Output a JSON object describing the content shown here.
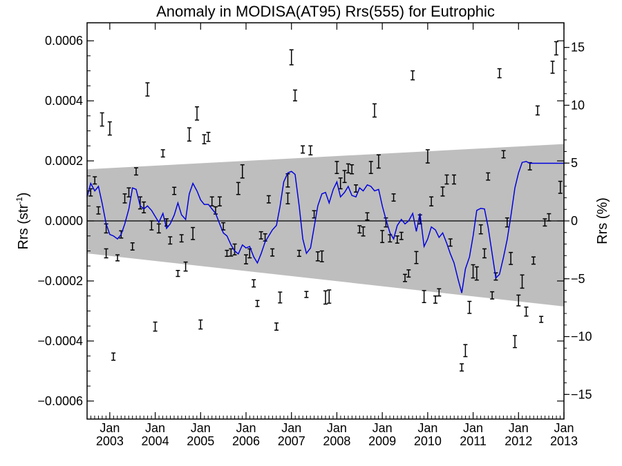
{
  "chart_data": {
    "type": "scatter",
    "title": "Anomaly in MODISA(AT95) Rrs(555) for Eutrophic",
    "ylabel_left": {
      "base": "Rrs (str",
      "sup": "-1",
      "close": ")"
    },
    "ylabel_right": "Rrs (%)",
    "xlim": [
      2002.5,
      2013.0
    ],
    "ylim": [
      -0.00066,
      0.00066
    ],
    "ylim_right_percent": [
      -17.13,
      17.13
    ],
    "left_ticks": [
      {
        "value": 0.0006,
        "label": "0.0006"
      },
      {
        "value": 0.0004,
        "label": "0.0004"
      },
      {
        "value": 0.0002,
        "label": "0.0002"
      },
      {
        "value": 0.0,
        "label": "0.0000"
      },
      {
        "value": -0.0002,
        "label": "−0.0002"
      },
      {
        "value": -0.0004,
        "label": "−0.0004"
      },
      {
        "value": -0.0006,
        "label": "−0.0006"
      }
    ],
    "right_ticks": [
      {
        "value": 15,
        "label": "15"
      },
      {
        "value": 10,
        "label": "10"
      },
      {
        "value": 5,
        "label": "5"
      },
      {
        "value": 0,
        "label": "0"
      },
      {
        "value": -5,
        "label": "−5"
      },
      {
        "value": -10,
        "label": "−10"
      },
      {
        "value": -15,
        "label": "−15"
      }
    ],
    "x_ticks": [
      {
        "value": 2003.0,
        "month": "Jan",
        "year": "2003"
      },
      {
        "value": 2004.0,
        "month": "Jan",
        "year": "2004"
      },
      {
        "value": 2005.0,
        "month": "Jan",
        "year": "2005"
      },
      {
        "value": 2006.0,
        "month": "Jan",
        "year": "2006"
      },
      {
        "value": 2007.0,
        "month": "Jan",
        "year": "2007"
      },
      {
        "value": 2008.0,
        "month": "Jan",
        "year": "2008"
      },
      {
        "value": 2009.0,
        "month": "Jan",
        "year": "2009"
      },
      {
        "value": 2010.0,
        "month": "Jan",
        "year": "2010"
      },
      {
        "value": 2011.0,
        "month": "Jan",
        "year": "2011"
      },
      {
        "value": 2012.0,
        "month": "Jan",
        "year": "2012"
      },
      {
        "value": 2013.0,
        "month": "Jan",
        "year": "2013"
      }
    ],
    "confidence_band": {
      "x": [
        2002.5,
        2013.0
      ],
      "upper": [
        0.000172,
        0.000256
      ],
      "lower": [
        -0.000108,
        -0.000285
      ],
      "color": "#bebebe"
    },
    "zero_line": 0.0,
    "error_bar_color": "#000000",
    "points": [
      {
        "x": 2002.58,
        "y": 9.5e-05,
        "e": 1.2e-05
      },
      {
        "x": 2002.67,
        "y": 0.000135,
        "e": 1.2e-05
      },
      {
        "x": 2002.75,
        "y": 3.5e-05,
        "e": 1.2e-05
      },
      {
        "x": 2002.83,
        "y": 0.000338,
        "e": 2.2e-05
      },
      {
        "x": 2002.92,
        "y": -0.000108,
        "e": 1.5e-05
      },
      {
        "x": 2002.92,
        "y": -2.5e-05,
        "e": 1.5e-05
      },
      {
        "x": 2003.0,
        "y": 0.000308,
        "e": 2.2e-05
      },
      {
        "x": 2003.08,
        "y": -0.000452,
        "e": 1.2e-05
      },
      {
        "x": 2003.17,
        "y": -0.000123,
        "e": 1e-05
      },
      {
        "x": 2003.25,
        "y": -4.5e-05,
        "e": 1.2e-05
      },
      {
        "x": 2003.33,
        "y": 7.5e-05,
        "e": 1.5e-05
      },
      {
        "x": 2003.42,
        "y": 9.5e-05,
        "e": 1.5e-05
      },
      {
        "x": 2003.5,
        "y": -8.5e-05,
        "e": 1.2e-05
      },
      {
        "x": 2003.58,
        "y": 0.000165,
        "e": 1.2e-05
      },
      {
        "x": 2003.67,
        "y": 6e-05,
        "e": 2e-05
      },
      {
        "x": 2003.75,
        "y": 4.5e-05,
        "e": 1.8e-05
      },
      {
        "x": 2003.83,
        "y": 0.000438,
        "e": 2.2e-05
      },
      {
        "x": 2003.92,
        "y": -1.5e-05,
        "e": 1.5e-05
      },
      {
        "x": 2004.0,
        "y": -0.000352,
        "e": 1.5e-05
      },
      {
        "x": 2004.08,
        "y": -2.5e-05,
        "e": 1.5e-05
      },
      {
        "x": 2004.17,
        "y": 0.000225,
        "e": 1.2e-05
      },
      {
        "x": 2004.25,
        "y": -5e-06,
        "e": 1.2e-05
      },
      {
        "x": 2004.33,
        "y": -6.5e-05,
        "e": 1.2e-05
      },
      {
        "x": 2004.42,
        "y": 0.0001,
        "e": 1.2e-05
      },
      {
        "x": 2004.5,
        "y": -0.000175,
        "e": 1e-05
      },
      {
        "x": 2004.58,
        "y": -5.8e-05,
        "e": 1.2e-05
      },
      {
        "x": 2004.67,
        "y": -0.000152,
        "e": 1.5e-05
      },
      {
        "x": 2004.75,
        "y": 0.000288,
        "e": 2.2e-05
      },
      {
        "x": 2004.83,
        "y": -4.2e-05,
        "e": 2e-05
      },
      {
        "x": 2004.92,
        "y": 0.000358,
        "e": 2.2e-05
      },
      {
        "x": 2005.0,
        "y": -0.000345,
        "e": 1.5e-05
      },
      {
        "x": 2005.08,
        "y": 0.000272,
        "e": 1.5e-05
      },
      {
        "x": 2005.17,
        "y": 0.00028,
        "e": 1.5e-05
      },
      {
        "x": 2005.25,
        "y": 6.5e-05,
        "e": 1.5e-05
      },
      {
        "x": 2005.33,
        "y": 3.5e-05,
        "e": 1.2e-05
      },
      {
        "x": 2005.42,
        "y": 6.5e-05,
        "e": 1.5e-05
      },
      {
        "x": 2005.5,
        "y": -1.8e-05,
        "e": 1.2e-05
      },
      {
        "x": 2005.58,
        "y": -0.000108,
        "e": 1e-05
      },
      {
        "x": 2005.67,
        "y": -0.000105,
        "e": 1.2e-05
      },
      {
        "x": 2005.75,
        "y": -9.5e-05,
        "e": 1.8e-05
      },
      {
        "x": 2005.83,
        "y": 0.000108,
        "e": 2e-05
      },
      {
        "x": 2005.92,
        "y": 0.000165,
        "e": 2.2e-05
      },
      {
        "x": 2006.0,
        "y": -0.000128,
        "e": 1.5e-05
      },
      {
        "x": 2006.08,
        "y": -0.000108,
        "e": 1.5e-05
      },
      {
        "x": 2006.17,
        "y": -0.000208,
        "e": 1.2e-05
      },
      {
        "x": 2006.25,
        "y": -0.000275,
        "e": 1e-05
      },
      {
        "x": 2006.33,
        "y": -4.8e-05,
        "e": 1.2e-05
      },
      {
        "x": 2006.42,
        "y": -5.5e-05,
        "e": 1.2e-05
      },
      {
        "x": 2006.5,
        "y": 7.2e-05,
        "e": 1.2e-05
      },
      {
        "x": 2006.58,
        "y": -0.000105,
        "e": 1.2e-05
      },
      {
        "x": 2006.67,
        "y": -0.000352,
        "e": 1.2e-05
      },
      {
        "x": 2006.75,
        "y": -0.000255,
        "e": 1.8e-05
      },
      {
        "x": 2006.92,
        "y": 0.000135,
        "e": 2.2e-05
      },
      {
        "x": 2006.92,
        "y": 7.5e-05,
        "e": 1.8e-05
      },
      {
        "x": 2007.0,
        "y": 0.000545,
        "e": 2.5e-05
      },
      {
        "x": 2007.08,
        "y": 0.000418,
        "e": 1.8e-05
      },
      {
        "x": 2007.17,
        "y": -0.000108,
        "e": 1e-05
      },
      {
        "x": 2007.25,
        "y": 0.000238,
        "e": 1.2e-05
      },
      {
        "x": 2007.33,
        "y": -0.000245,
        "e": 1e-05
      },
      {
        "x": 2007.42,
        "y": 0.000235,
        "e": 1.5e-05
      },
      {
        "x": 2007.5,
        "y": 2.2e-05,
        "e": 1.2e-05
      },
      {
        "x": 2007.58,
        "y": -0.000118,
        "e": 1.5e-05
      },
      {
        "x": 2007.67,
        "y": -0.000118,
        "e": 1.8e-05
      },
      {
        "x": 2007.75,
        "y": -0.000255,
        "e": 2.2e-05
      },
      {
        "x": 2007.83,
        "y": -0.000252,
        "e": 2.2e-05
      },
      {
        "x": 2008.0,
        "y": 0.000178,
        "e": 2e-05
      },
      {
        "x": 2008.08,
        "y": 0.000125,
        "e": 1.8e-05
      },
      {
        "x": 2008.17,
        "y": 0.000148,
        "e": 2e-05
      },
      {
        "x": 2008.25,
        "y": 0.000175,
        "e": 1.5e-05
      },
      {
        "x": 2008.33,
        "y": 0.000172,
        "e": 1.5e-05
      },
      {
        "x": 2008.42,
        "y": 0.000108,
        "e": 1.2e-05
      },
      {
        "x": 2008.5,
        "y": -2.8e-05,
        "e": 1.2e-05
      },
      {
        "x": 2008.58,
        "y": -3.5e-05,
        "e": 1.5e-05
      },
      {
        "x": 2008.67,
        "y": 1.5e-05,
        "e": 1.2e-05
      },
      {
        "x": 2008.75,
        "y": 0.000178,
        "e": 2e-05
      },
      {
        "x": 2008.83,
        "y": 0.000368,
        "e": 2.2e-05
      },
      {
        "x": 2008.92,
        "y": 0.000198,
        "e": 2.2e-05
      },
      {
        "x": 2009.0,
        "y": -5.2e-05,
        "e": 2e-05
      },
      {
        "x": 2009.08,
        "y": -5e-06,
        "e": 1.5e-05
      },
      {
        "x": 2009.17,
        "y": -5.8e-05,
        "e": 1.2e-05
      },
      {
        "x": 2009.25,
        "y": 7.8e-05,
        "e": 1.2e-05
      },
      {
        "x": 2009.33,
        "y": -6.2e-05,
        "e": 1.2e-05
      },
      {
        "x": 2009.42,
        "y": -5e-05,
        "e": 1.2e-05
      },
      {
        "x": 2009.5,
        "y": -0.00019,
        "e": 1.2e-05
      },
      {
        "x": 2009.58,
        "y": -0.000175,
        "e": 1.2e-05
      },
      {
        "x": 2009.67,
        "y": 0.000485,
        "e": 1.5e-05
      },
      {
        "x": 2009.75,
        "y": -0.000122,
        "e": 2e-05
      },
      {
        "x": 2009.83,
        "y": 5e-06,
        "e": 1.5e-05
      },
      {
        "x": 2009.92,
        "y": -0.000252,
        "e": 2e-05
      },
      {
        "x": 2010.0,
        "y": 0.000215,
        "e": 2.2e-05
      },
      {
        "x": 2010.08,
        "y": 6.5e-05,
        "e": 1.5e-05
      },
      {
        "x": 2010.17,
        "y": -0.000262,
        "e": 1.2e-05
      },
      {
        "x": 2010.25,
        "y": -0.000238,
        "e": 1.2e-05
      },
      {
        "x": 2010.33,
        "y": 9.8e-05,
        "e": 1.5e-05
      },
      {
        "x": 2010.42,
        "y": 0.000138,
        "e": 1.5e-05
      },
      {
        "x": 2010.5,
        "y": -7.2e-05,
        "e": 1.2e-05
      },
      {
        "x": 2010.58,
        "y": 0.000138,
        "e": 1.5e-05
      },
      {
        "x": 2010.75,
        "y": -0.000488,
        "e": 1.2e-05
      },
      {
        "x": 2010.83,
        "y": -0.000432,
        "e": 2e-05
      },
      {
        "x": 2010.92,
        "y": -0.000288,
        "e": 2e-05
      },
      {
        "x": 2011.0,
        "y": -0.000168,
        "e": 2.2e-05
      },
      {
        "x": 2011.08,
        "y": -0.000175,
        "e": 2.2e-05
      },
      {
        "x": 2011.17,
        "y": -2.8e-05,
        "e": 1.5e-05
      },
      {
        "x": 2011.25,
        "y": -0.000108,
        "e": 1.5e-05
      },
      {
        "x": 2011.33,
        "y": 0.000148,
        "e": 1.2e-05
      },
      {
        "x": 2011.42,
        "y": -0.000248,
        "e": 1.2e-05
      },
      {
        "x": 2011.5,
        "y": -0.000185,
        "e": 1.2e-05
      },
      {
        "x": 2011.58,
        "y": 0.000492,
        "e": 1.5e-05
      },
      {
        "x": 2011.67,
        "y": 0.000222,
        "e": 1.2e-05
      },
      {
        "x": 2011.75,
        "y": -5e-06,
        "e": 1.5e-05
      },
      {
        "x": 2011.83,
        "y": -0.000125,
        "e": 2e-05
      },
      {
        "x": 2011.92,
        "y": -0.000402,
        "e": 2e-05
      },
      {
        "x": 2012.0,
        "y": -0.000265,
        "e": 1.8e-05
      },
      {
        "x": 2012.08,
        "y": -0.000202,
        "e": 2.2e-05
      },
      {
        "x": 2012.17,
        "y": -0.000302,
        "e": 1.5e-05
      },
      {
        "x": 2012.25,
        "y": 0.000182,
        "e": 1.2e-05
      },
      {
        "x": 2012.33,
        "y": -0.000132,
        "e": 1.2e-05
      },
      {
        "x": 2012.42,
        "y": 0.000368,
        "e": 1.5e-05
      },
      {
        "x": 2012.5,
        "y": -0.000328,
        "e": 1e-05
      },
      {
        "x": 2012.58,
        "y": -5e-06,
        "e": 1.2e-05
      },
      {
        "x": 2012.67,
        "y": 1.2e-05,
        "e": 1.2e-05
      },
      {
        "x": 2012.75,
        "y": 0.000512,
        "e": 2e-05
      },
      {
        "x": 2012.83,
        "y": 0.000575,
        "e": 2.2e-05
      },
      {
        "x": 2012.92,
        "y": 0.000112,
        "e": 2e-05
      }
    ],
    "smoothed_line": {
      "color": "#0000dd",
      "x": [
        2002.5,
        2002.58,
        2002.67,
        2002.75,
        2002.83,
        2002.92,
        2003.0,
        2003.08,
        2003.17,
        2003.25,
        2003.33,
        2003.42,
        2003.5,
        2003.58,
        2003.67,
        2003.75,
        2003.83,
        2003.92,
        2004.0,
        2004.08,
        2004.17,
        2004.25,
        2004.33,
        2004.42,
        2004.5,
        2004.58,
        2004.67,
        2004.75,
        2004.83,
        2004.92,
        2005.0,
        2005.08,
        2005.17,
        2005.25,
        2005.33,
        2005.42,
        2005.5,
        2005.58,
        2005.67,
        2005.75,
        2005.83,
        2005.92,
        2006.0,
        2006.08,
        2006.17,
        2006.25,
        2006.33,
        2006.42,
        2006.5,
        2006.58,
        2006.67,
        2006.75,
        2006.83,
        2006.92,
        2007.0,
        2007.08,
        2007.17,
        2007.25,
        2007.33,
        2007.42,
        2007.5,
        2007.58,
        2007.67,
        2007.75,
        2007.83,
        2007.92,
        2008.0,
        2008.08,
        2008.17,
        2008.25,
        2008.33,
        2008.42,
        2008.5,
        2008.58,
        2008.67,
        2008.75,
        2008.83,
        2008.92,
        2009.0,
        2009.08,
        2009.17,
        2009.25,
        2009.33,
        2009.42,
        2009.5,
        2009.58,
        2009.67,
        2009.75,
        2009.83,
        2009.92,
        2010.0,
        2010.08,
        2010.17,
        2010.25,
        2010.33,
        2010.42,
        2010.5,
        2010.58,
        2010.67,
        2010.75,
        2010.83,
        2010.92,
        2011.0,
        2011.08,
        2011.17,
        2011.25,
        2011.33,
        2011.42,
        2011.5,
        2011.58,
        2011.67,
        2011.75,
        2011.83,
        2011.92,
        2012.0,
        2012.08,
        2012.17,
        2012.25,
        2012.33,
        2012.42,
        2012.5,
        2012.58,
        2012.67,
        2012.75,
        2012.83,
        2012.92,
        2013.0
      ],
      "y": [
        8e-05,
        0.000125,
        0.0001,
        0.000115,
        6e-05,
        -1e-05,
        -4.5e-05,
        -5e-05,
        -6e-05,
        -4.5e-05,
        -1e-05,
        4e-05,
        0.00011,
        0.000105,
        5e-05,
        4e-05,
        5e-05,
        3.5e-05,
        1.5e-05,
        -5e-06,
        2.5e-05,
        -2.5e-05,
        -1e-05,
        2e-05,
        6e-05,
        2e-05,
        5e-06,
        9e-05,
        0.000125,
        0.0001,
        7e-05,
        5.5e-05,
        5.5e-05,
        4e-05,
        2.5e-05,
        -1e-05,
        -4e-05,
        -5e-05,
        -8e-05,
        -0.0001,
        -0.00011,
        -8e-05,
        -9e-05,
        -8.5e-05,
        -0.00012,
        -0.00014,
        -0.00011,
        -7e-05,
        -5e-05,
        -3e-05,
        -1.5e-05,
        5e-05,
        0.00013,
        0.00016,
        0.000165,
        0.000155,
        5e-05,
        -6e-05,
        -0.000108,
        -9e-05,
        -2e-05,
        5e-05,
        9e-05,
        9.5e-05,
        6e-05,
        0.000105,
        0.00013,
        8e-05,
        9.5e-05,
        0.000115,
        8.5e-05,
        8e-05,
        0.00011,
        0.0001,
        0.00012,
        0.000115,
        0.0001,
        0.000105,
        5e-05,
        5e-06,
        -4e-05,
        -6e-05,
        -1.5e-05,
        5e-06,
        -1e-05,
        0.0,
        2.5e-05,
        -3.5e-05,
        2.5e-05,
        -8.5e-05,
        -6e-05,
        -2e-05,
        -3e-05,
        -5.5e-05,
        -4e-05,
        -7.5e-05,
        -0.00011,
        -0.00014,
        -0.000195,
        -0.00024,
        -0.00016,
        -0.00012,
        -5e-05,
        3.5e-05,
        4.2e-05,
        4e-05,
        -2e-05,
        -0.00011,
        -0.00019,
        -0.000178,
        -0.00012,
        -6.2e-05,
        1.5e-05,
        0.00011,
        0.00016,
        0.000195,
        0.000198,
        0.000192,
        0.000192,
        0.000192,
        0.000192,
        0.000192,
        0.000192,
        0.000192,
        0.000192,
        0.000192,
        0.000192
      ]
    }
  }
}
